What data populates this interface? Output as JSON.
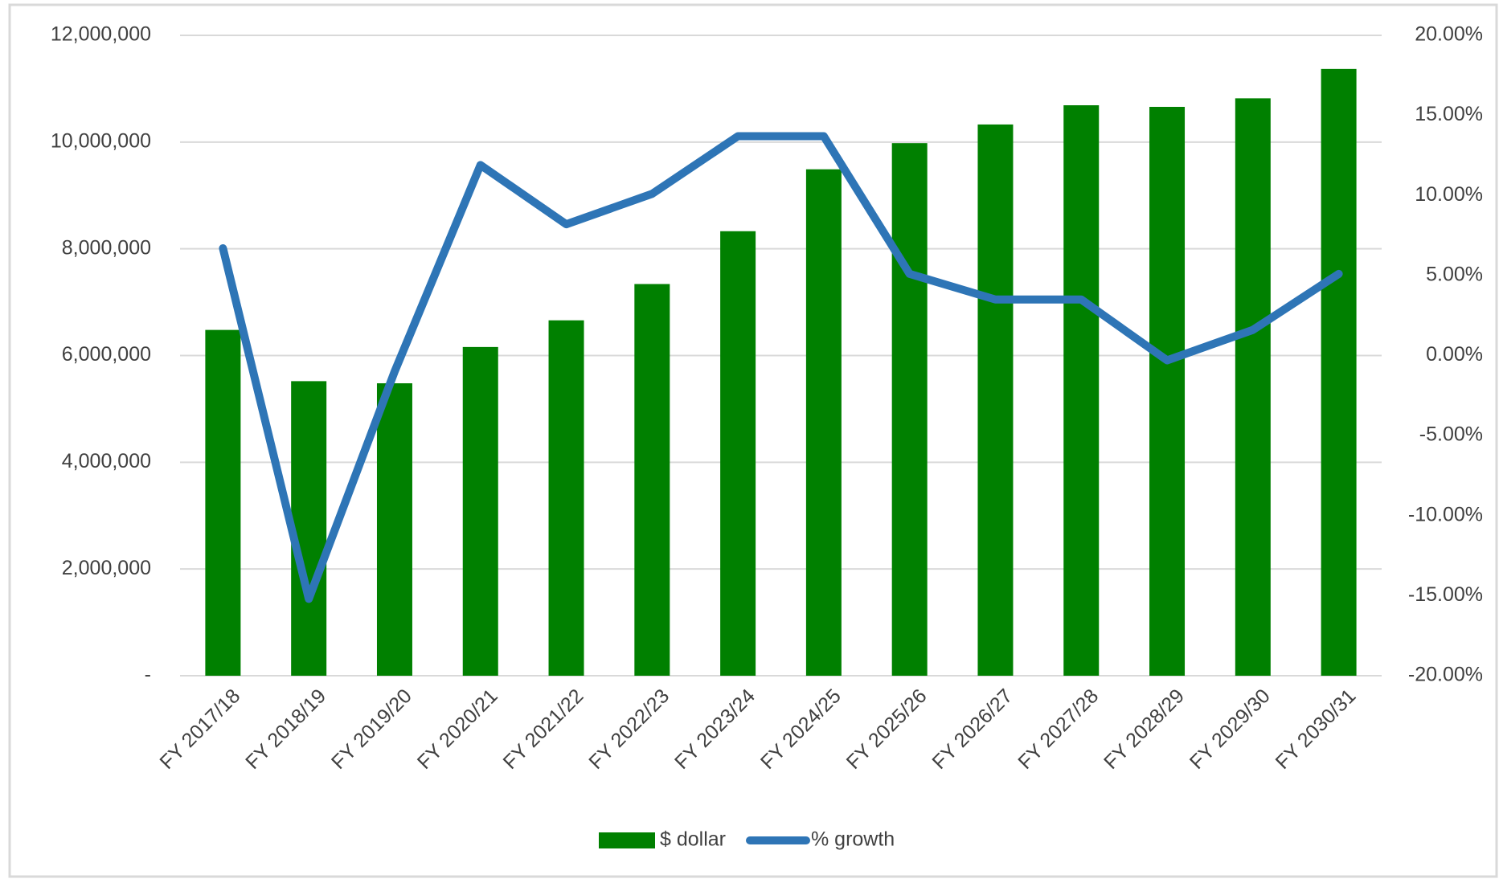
{
  "chart_data": {
    "type": "bar_line",
    "categories": [
      "FY 2017/18",
      "FY 2018/19",
      "FY 2019/20",
      "FY 2020/21",
      "FY 2021/22",
      "FY 2022/23",
      "FY 2023/24",
      "FY 2024/25",
      "FY 2025/26",
      "FY 2026/27",
      "FY 2027/28",
      "FY 2028/29",
      "FY 2029/30",
      "FY 2030/31"
    ],
    "series": [
      {
        "name": "$ dollar",
        "type": "bar",
        "color": "#008000",
        "values": [
          6480000,
          5520000,
          5480000,
          6160000,
          6660000,
          7340000,
          8330000,
          9490000,
          9980000,
          10330000,
          10690000,
          10660000,
          10820000,
          11370000
        ]
      },
      {
        "name": "% growth",
        "type": "line",
        "axis": "y2",
        "color": "#2e75b6",
        "values": [
          6.7,
          -15.2,
          -1.0,
          11.9,
          8.2,
          10.1,
          13.7,
          13.7,
          5.1,
          3.5,
          3.5,
          -0.3,
          1.6,
          5.1
        ]
      }
    ],
    "ylim": [
      0,
      12000000
    ],
    "yticks": [
      {
        "value": 0,
        "label": "-"
      },
      {
        "value": 2000000,
        "label": "2,000,000"
      },
      {
        "value": 4000000,
        "label": "4,000,000"
      },
      {
        "value": 6000000,
        "label": "6,000,000"
      },
      {
        "value": 8000000,
        "label": "8,000,000"
      },
      {
        "value": 10000000,
        "label": "10,000,000"
      },
      {
        "value": 12000000,
        "label": "12,000,000"
      }
    ],
    "y2lim": [
      -20,
      20
    ],
    "y2ticks": [
      {
        "value": -20,
        "label": "-20.00%"
      },
      {
        "value": -15,
        "label": "-15.00%"
      },
      {
        "value": -10,
        "label": "-10.00%"
      },
      {
        "value": -5,
        "label": "-5.00%"
      },
      {
        "value": 0,
        "label": "0.00%"
      },
      {
        "value": 5,
        "label": "5.00%"
      },
      {
        "value": 10,
        "label": "10.00%"
      },
      {
        "value": 15,
        "label": "15.00%"
      },
      {
        "value": 20,
        "label": "20.00%"
      }
    ],
    "grid": true,
    "legend": "bottom"
  }
}
